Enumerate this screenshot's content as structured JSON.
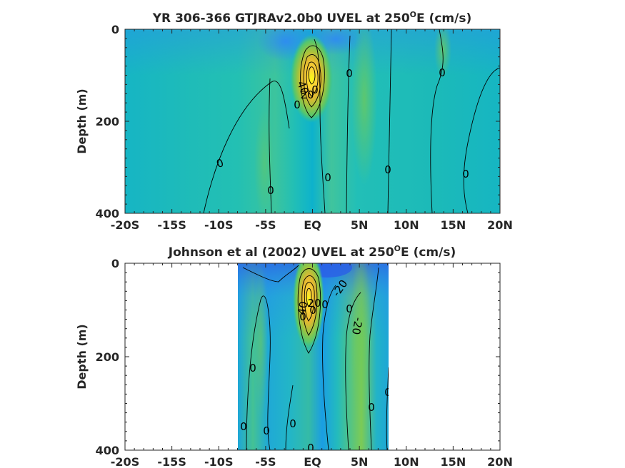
{
  "figure": {
    "background": "#ffffff",
    "axis_color": "#262626",
    "colormap": [
      "#3e26a8",
      "#2e87f7",
      "#0db3d3",
      "#23c1b4",
      "#7bc851",
      "#d9bf2f",
      "#fdd238",
      "#f9fb15"
    ]
  },
  "chart_data": [
    {
      "type": "heatmap",
      "title": "YR 306-366 GTJRAv2.0b0 UVEL at 250",
      "title_sup": "O",
      "title_suffix": "E (cm/s)",
      "xlabel": "",
      "ylabel": "Depth (m)",
      "x_ticks": [
        "-20S",
        "-15S",
        "-10S",
        "-5S",
        "EQ",
        "5N",
        "10N",
        "15N",
        "20N"
      ],
      "x_tick_values": [
        -20,
        -15,
        -10,
        -5,
        0,
        5,
        10,
        15,
        20
      ],
      "y_ticks": [
        "0",
        "200",
        "400"
      ],
      "y_tick_values": [
        0,
        200,
        400
      ],
      "xlim": [
        -20,
        20
      ],
      "ylim": [
        0,
        400
      ],
      "y_reversed": true,
      "data_extent_lat": [
        -20,
        20
      ],
      "contour_labels": [
        "0",
        "0",
        "0",
        "0",
        "0",
        "0",
        "0",
        "0",
        "40",
        "20",
        "0"
      ],
      "features": {
        "core_lat": 0,
        "core_depth": 90,
        "core_max": 100,
        "contour_interval": 20
      }
    },
    {
      "type": "heatmap",
      "title": "Johnson et al (2002) UVEL at 250",
      "title_sup": "O",
      "title_suffix": "E (cm/s)",
      "xlabel": "",
      "ylabel": "Depth (m)",
      "x_ticks": [
        "-20S",
        "-15S",
        "-10S",
        "-5S",
        "EQ",
        "5N",
        "10N",
        "15N",
        "20N"
      ],
      "x_tick_values": [
        -20,
        -15,
        -10,
        -5,
        0,
        5,
        10,
        15,
        20
      ],
      "y_ticks": [
        "0",
        "200",
        "400"
      ],
      "y_tick_values": [
        0,
        200,
        400
      ],
      "xlim": [
        -20,
        20
      ],
      "ylim": [
        0,
        400
      ],
      "y_reversed": true,
      "data_extent_lat": [
        -8,
        8.3
      ],
      "contour_labels": [
        "0",
        "0",
        "0",
        "0",
        "0",
        "0",
        "0",
        "0",
        "0",
        "0",
        "0",
        "-20",
        "-20",
        "20",
        "40"
      ],
      "features": {
        "core_lat": 0,
        "core_depth": 70,
        "core_max": 100,
        "contour_interval": 20
      }
    }
  ]
}
